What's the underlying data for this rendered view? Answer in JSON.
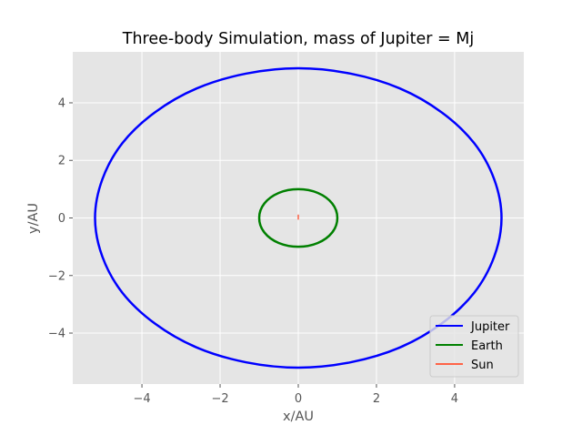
{
  "chart_data": {
    "type": "line",
    "title": "Three-body Simulation, mass of Jupiter = Mj",
    "xlabel": "x/AU",
    "ylabel": "y/AU",
    "xlim": [
      -5.77,
      5.77
    ],
    "ylim": [
      -5.77,
      5.77
    ],
    "xticks": [
      -4,
      -2,
      0,
      2,
      4
    ],
    "yticks": [
      -4,
      -2,
      0,
      2,
      4
    ],
    "xtick_labels": [
      "−4",
      "−2",
      "0",
      "2",
      "4"
    ],
    "ytick_labels": [
      "−4",
      "−2",
      "0",
      "2",
      "4"
    ],
    "grid": true,
    "legend_position": "lower right",
    "series": [
      {
        "name": "Jupiter",
        "color": "#0000ff",
        "x": [
          5.2,
          4.5,
          2.6,
          0.0,
          -2.6,
          -4.5,
          -5.2,
          -4.5,
          -2.6,
          0.0,
          2.6,
          4.5,
          5.2
        ],
        "y": [
          0.0,
          2.6,
          4.5,
          5.2,
          4.5,
          2.6,
          0.0,
          -2.6,
          -4.5,
          -5.2,
          -4.5,
          -2.6,
          0.0
        ]
      },
      {
        "name": "Earth",
        "color": "#008000",
        "x": [
          1.0,
          0.87,
          0.5,
          0.0,
          -0.5,
          -0.87,
          -1.0,
          -0.87,
          -0.5,
          0.0,
          0.5,
          0.87,
          1.0
        ],
        "y": [
          0.0,
          0.5,
          0.87,
          1.0,
          0.87,
          0.5,
          0.0,
          -0.5,
          -0.87,
          -1.0,
          -0.87,
          -0.5,
          0.0
        ]
      },
      {
        "name": "Sun",
        "color": "#ff6347",
        "x": [
          0.0,
          0.0,
          0.0,
          0.0
        ],
        "y": [
          -0.04,
          0.0,
          0.04,
          0.1
        ]
      }
    ]
  }
}
